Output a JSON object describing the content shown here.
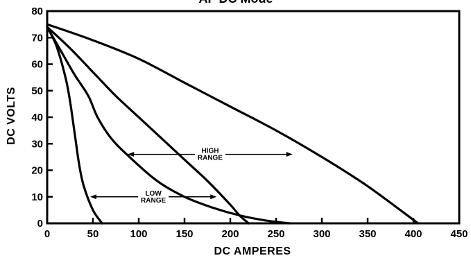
{
  "chart_data": {
    "type": "line",
    "title": "AF DC Mode",
    "xlabel": "DC AMPERES",
    "ylabel": "DC VOLTS",
    "xlim": [
      0,
      450
    ],
    "ylim": [
      0,
      80
    ],
    "x_ticks": [
      "0",
      "50",
      "100",
      "150",
      "200",
      "250",
      "300",
      "350",
      "400",
      "450"
    ],
    "y_ticks": [
      "0",
      "10",
      "20",
      "30",
      "40",
      "50",
      "60",
      "70",
      "80"
    ],
    "grid": false,
    "series": [
      {
        "x": [
          0,
          10,
          20,
          25,
          30,
          35,
          40,
          50,
          60
        ],
        "y": [
          74,
          67,
          55,
          46,
          34,
          22,
          14,
          5,
          0
        ]
      },
      {
        "x": [
          0,
          15,
          30,
          45,
          55,
          70,
          90,
          120,
          150,
          180,
          210,
          240,
          265
        ],
        "y": [
          74,
          65,
          56,
          48,
          40,
          32,
          25,
          16,
          10,
          6,
          3,
          1,
          0
        ]
      },
      {
        "x": [
          0,
          25,
          50,
          75,
          100,
          125,
          150,
          175,
          200,
          210,
          220
        ],
        "y": [
          74,
          66,
          57,
          48,
          40,
          32,
          24,
          16,
          7,
          3,
          0
        ]
      },
      {
        "x": [
          0,
          50,
          100,
          150,
          200,
          250,
          300,
          350,
          405
        ],
        "y": [
          75,
          69,
          62,
          53,
          44,
          35,
          25,
          14,
          0
        ]
      }
    ],
    "annotations": [
      {
        "lines": [
          "HIGH",
          "RANGE"
        ],
        "arrow_x": [
          88,
          268
        ],
        "arrow_y": 26
      },
      {
        "lines": [
          "LOW",
          "RANGE"
        ],
        "arrow_x": [
          47,
          185
        ],
        "arrow_y": 10
      }
    ]
  }
}
